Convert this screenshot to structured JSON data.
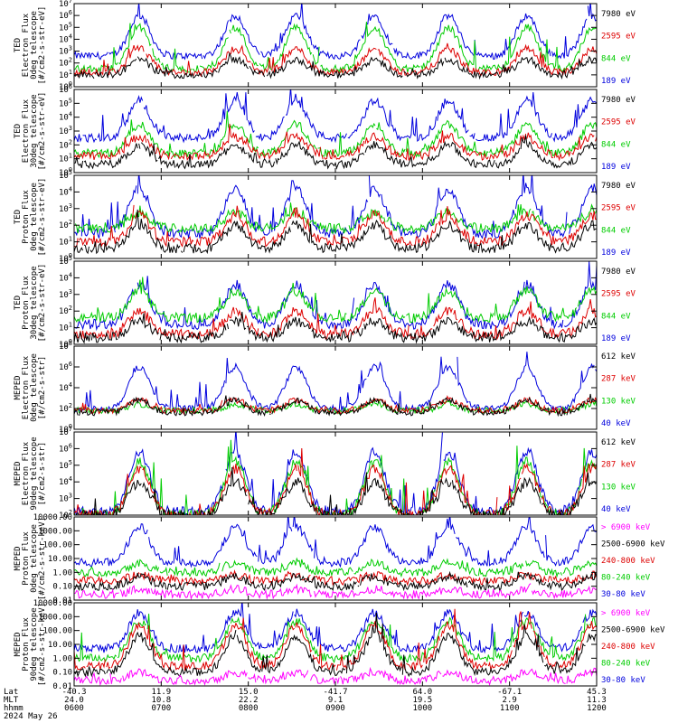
{
  "chart_data": {
    "type": "line",
    "date": "2024 May 26",
    "panels": [
      {
        "ylabel": [
          "TED",
          "Electron Flux",
          "0deg telescope",
          "[#/cm2-s-str-eV]"
        ],
        "ytick_labels": [
          "10^0",
          "10^1",
          "10^2",
          "10^3",
          "10^4",
          "10^5",
          "10^6",
          "10^7"
        ],
        "ylim_log": [
          0,
          7
        ],
        "series": [
          {
            "name": "7980 eV",
            "color": "#000000",
            "base": 1.0,
            "peak": 2.3
          },
          {
            "name": "2595 eV",
            "color": "#dd0000",
            "base": 1.2,
            "peak": 3.2
          },
          {
            "name": "844 eV",
            "color": "#00cc00",
            "base": 1.5,
            "peak": 5.0
          },
          {
            "name": "189 eV",
            "color": "#0000dd",
            "base": 2.6,
            "peak": 6.0
          }
        ]
      },
      {
        "ylabel": [
          "TED",
          "Electron Flux",
          "30deg telescope",
          "[#/cm2-s-str-eV]"
        ],
        "ytick_labels": [
          "10^0",
          "10^1",
          "10^2",
          "10^3",
          "10^4",
          "10^5",
          "10^6"
        ],
        "ylim_log": [
          0,
          6
        ],
        "series": [
          {
            "name": "7980 eV",
            "color": "#000000",
            "base": 0.6,
            "peak": 2.0
          },
          {
            "name": "2595 eV",
            "color": "#dd0000",
            "base": 1.2,
            "peak": 2.6
          },
          {
            "name": "844 eV",
            "color": "#00cc00",
            "base": 1.4,
            "peak": 3.5
          },
          {
            "name": "189 eV",
            "color": "#0000dd",
            "base": 2.5,
            "peak": 5.2
          }
        ]
      },
      {
        "ylabel": [
          "TED",
          "Proton Flux",
          "0deg telescope",
          "[#/cm2-s-str-eV]"
        ],
        "ytick_labels": [
          "10^0",
          "10^1",
          "10^2",
          "10^3",
          "10^4",
          "10^5"
        ],
        "ylim_log": [
          0,
          5
        ],
        "series": [
          {
            "name": "7980 eV",
            "color": "#000000",
            "base": 0.6,
            "peak": 2.0
          },
          {
            "name": "2595 eV",
            "color": "#dd0000",
            "base": 1.0,
            "peak": 2.6
          },
          {
            "name": "844 eV",
            "color": "#00cc00",
            "base": 1.8,
            "peak": 2.8
          },
          {
            "name": "189 eV",
            "color": "#0000dd",
            "base": 1.5,
            "peak": 4.2
          }
        ]
      },
      {
        "ylabel": [
          "TED",
          "Proton Flux",
          "30deg telescope",
          "[#/cm2-s-str-eV]"
        ],
        "ytick_labels": [
          "10^0",
          "10^1",
          "10^2",
          "10^3",
          "10^4",
          "10^5"
        ],
        "ylim_log": [
          0,
          5
        ],
        "series": [
          {
            "name": "7980 eV",
            "color": "#000000",
            "base": 0.4,
            "peak": 1.4
          },
          {
            "name": "2595 eV",
            "color": "#dd0000",
            "base": 0.6,
            "peak": 2.0
          },
          {
            "name": "844 eV",
            "color": "#00cc00",
            "base": 1.6,
            "peak": 3.2
          },
          {
            "name": "189 eV",
            "color": "#0000dd",
            "base": 1.2,
            "peak": 3.6
          }
        ]
      },
      {
        "ylabel": [
          "MEPED",
          "Electron Flux",
          "0deg telescope",
          "[#/cm2-s-str]"
        ],
        "ytick_labels": [
          "10^0",
          "10^2",
          "10^4",
          "10^6",
          "10^8"
        ],
        "ylim_log": [
          0,
          8
        ],
        "series": [
          {
            "name": "612 keV",
            "color": "#000000",
            "base": 1.6,
            "peak": 2.8
          },
          {
            "name": "287 keV",
            "color": "#dd0000",
            "base": 1.8,
            "peak": 2.8
          },
          {
            "name": "130 keV",
            "color": "#00cc00",
            "base": 1.8,
            "peak": 2.4
          },
          {
            "name": "40 keV",
            "color": "#0000dd",
            "base": 2.0,
            "peak": 6.0
          }
        ]
      },
      {
        "ylabel": [
          "MEPED",
          "Electron Flux",
          "90deg telescope",
          "[#/cm2-s-str]"
        ],
        "ytick_labels": [
          "10^2",
          "10^3",
          "10^4",
          "10^5",
          "10^6",
          "10^7"
        ],
        "ylim_log": [
          2,
          7
        ],
        "series": [
          {
            "name": "612 keV",
            "color": "#000000",
            "base": 2.0,
            "peak": 4.0
          },
          {
            "name": "287 keV",
            "color": "#dd0000",
            "base": 2.0,
            "peak": 4.8
          },
          {
            "name": "130 keV",
            "color": "#00cc00",
            "base": 2.0,
            "peak": 5.2
          },
          {
            "name": "40 keV",
            "color": "#0000dd",
            "base": 2.2,
            "peak": 5.8
          }
        ]
      },
      {
        "ylabel": [
          "MEPED",
          "Proton Flux",
          "0deg telescope",
          "[#/cm2-s-str-keV]"
        ],
        "ytick_labels": [
          "0.01",
          "0.10",
          "1.00",
          "10.00",
          "100.00",
          "1000.00",
          "10000.00"
        ],
        "ylim_log": [
          -2,
          4
        ],
        "series": [
          {
            "name": "> 6900 keV",
            "color": "#ff00ff",
            "base": -1.6,
            "peak": -1.2
          },
          {
            "name": "2500-6900 keV",
            "color": "#000000",
            "base": -1.0,
            "peak": -0.3
          },
          {
            "name": "240-800 keV",
            "color": "#dd0000",
            "base": -0.6,
            "peak": -0.2
          },
          {
            "name": "80-240 keV",
            "color": "#00cc00",
            "base": 0.0,
            "peak": 0.7
          },
          {
            "name": "30-80 keV",
            "color": "#0000dd",
            "base": 0.7,
            "peak": 3.3
          }
        ]
      },
      {
        "ylabel": [
          "MEPED",
          "Proton Flux",
          "90deg telescope",
          "[#/cm2-s-str-keV]"
        ],
        "ytick_labels": [
          "0.01",
          "0.10",
          "1.00",
          "10.00",
          "100.00",
          "1000.00",
          "10000.00"
        ],
        "ylim_log": [
          -2,
          4
        ],
        "series": [
          {
            "name": "> 6900 keV",
            "color": "#ff00ff",
            "base": -1.6,
            "peak": -1.0
          },
          {
            "name": "2500-6900 keV",
            "color": "#000000",
            "base": -1.0,
            "peak": 1.6
          },
          {
            "name": "240-800 keV",
            "color": "#dd0000",
            "base": -0.6,
            "peak": 2.4
          },
          {
            "name": "80-240 keV",
            "color": "#00cc00",
            "base": 0.0,
            "peak": 2.7
          },
          {
            "name": "30-80 keV",
            "color": "#0000dd",
            "base": 0.7,
            "peak": 3.3
          }
        ]
      }
    ],
    "x_axis": {
      "row_labels": [
        "Lat",
        "MLT",
        "hhmm",
        "2024 May 26"
      ],
      "ticks": [
        {
          "lat": "-40.3",
          "mlt": "24.0",
          "hhmm": "0600",
          "t": 0
        },
        {
          "lat": "11.9",
          "mlt": "10.8",
          "hhmm": "0700",
          "t": 1
        },
        {
          "lat": "15.0",
          "mlt": "22.2",
          "hhmm": "0800",
          "t": 2
        },
        {
          "lat": "-41.7",
          "mlt": "9.1",
          "hhmm": "0900",
          "t": 3
        },
        {
          "lat": "64.0",
          "mlt": "19.5",
          "hhmm": "1000",
          "t": 4
        },
        {
          "lat": "-67.1",
          "mlt": "2.9",
          "hhmm": "1100",
          "t": 5
        },
        {
          "lat": "45.3",
          "mlt": "11.3",
          "hhmm": "1200",
          "t": 6
        }
      ]
    },
    "pass_centers_hours": [
      0.75,
      1.85,
      2.55,
      3.45,
      4.3,
      5.2,
      5.95
    ],
    "grid": false
  }
}
